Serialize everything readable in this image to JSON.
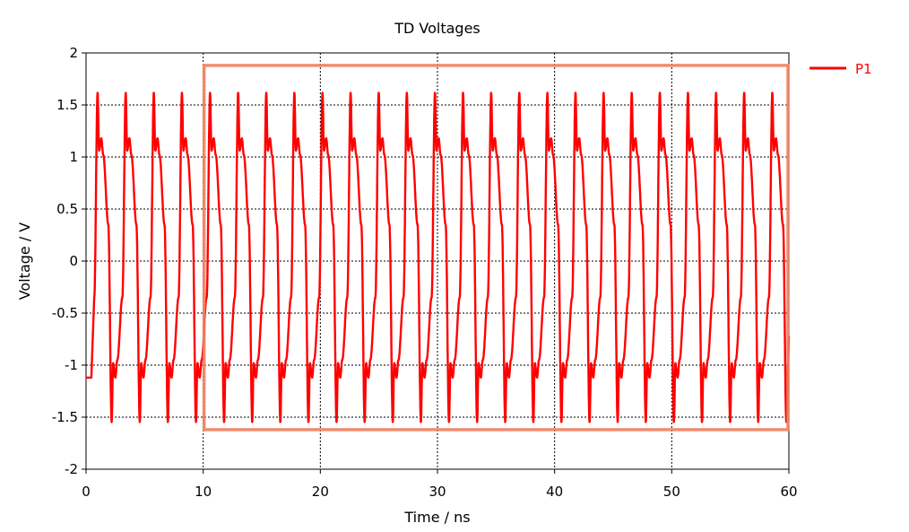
{
  "chart_data": {
    "type": "line",
    "title": "TD Voltages",
    "xlabel": "Time / ns",
    "ylabel": "Voltage / V",
    "xlim": [
      0,
      60
    ],
    "ylim": [
      -2,
      2
    ],
    "x_ticks": [
      {
        "value": 0,
        "label": "0"
      },
      {
        "value": 10,
        "label": "10"
      },
      {
        "value": 20,
        "label": "20"
      },
      {
        "value": 30,
        "label": "30"
      },
      {
        "value": 40,
        "label": "40"
      },
      {
        "value": 50,
        "label": "50"
      },
      {
        "value": 60,
        "label": "60"
      }
    ],
    "y_ticks": [
      {
        "value": 2,
        "label": "2"
      },
      {
        "value": 1.5,
        "label": "1.5"
      },
      {
        "value": 1,
        "label": "1"
      },
      {
        "value": 0.5,
        "label": "0.5"
      },
      {
        "value": 0,
        "label": "0"
      },
      {
        "value": -0.5,
        "label": "-0.5"
      },
      {
        "value": -1,
        "label": "-1"
      },
      {
        "value": -1.5,
        "label": "-1.5"
      },
      {
        "value": -2,
        "label": "-2"
      }
    ],
    "grid": true,
    "legend_position": "top-right",
    "series": [
      {
        "name": "P1",
        "color": "#ff0000",
        "initial_level": -1.12,
        "start_ns": 0.7,
        "period_ns": 2.4,
        "waveform": {
          "phases": [
            0,
            0.12,
            0.17,
            0.25,
            0.32,
            0.5,
            0.62,
            0.67,
            0.75,
            0.82,
            1.0
          ],
          "levels": [
            -0.35,
            1.62,
            1.06,
            1.18,
            1.02,
            0.35,
            -1.55,
            -0.98,
            -1.12,
            -0.95,
            -0.35
          ]
        },
        "end_level": -0.72
      }
    ],
    "annotations": [
      {
        "type": "highlight-box",
        "x_range": [
          10,
          60
        ],
        "y_range": [
          -1.62,
          1.88
        ],
        "color": "#f08060"
      }
    ]
  }
}
